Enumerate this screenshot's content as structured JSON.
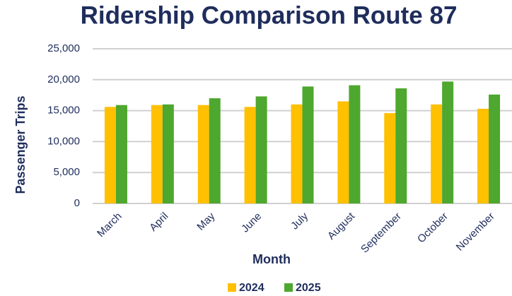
{
  "chart_data": {
    "type": "bar",
    "title": "Ridership Comparison Route 87",
    "x_label": "Month",
    "y_label": "Passenger Trips",
    "categories": [
      "March",
      "April",
      "May",
      "June",
      "July",
      "August",
      "September",
      "October",
      "November"
    ],
    "series": [
      {
        "name": "2024",
        "color": "#ffc000",
        "values": [
          15600,
          15900,
          15900,
          15600,
          16000,
          16500,
          14600,
          16000,
          15300
        ]
      },
      {
        "name": "2025",
        "color": "#4ea72e",
        "values": [
          15900,
          16000,
          17000,
          17300,
          18900,
          19100,
          18600,
          19700,
          17600
        ]
      }
    ],
    "ylim": [
      0,
      25000
    ],
    "yticks": [
      0,
      {
        "value": 5000,
        "label": "5,000"
      },
      {
        "value": 10000,
        "label": "10,000"
      },
      {
        "value": 15000,
        "label": "15,000"
      },
      {
        "value": 20000,
        "label": "20,000"
      },
      {
        "value": 25000,
        "label": "25,000"
      }
    ],
    "grid": true,
    "legend": "bottom"
  }
}
